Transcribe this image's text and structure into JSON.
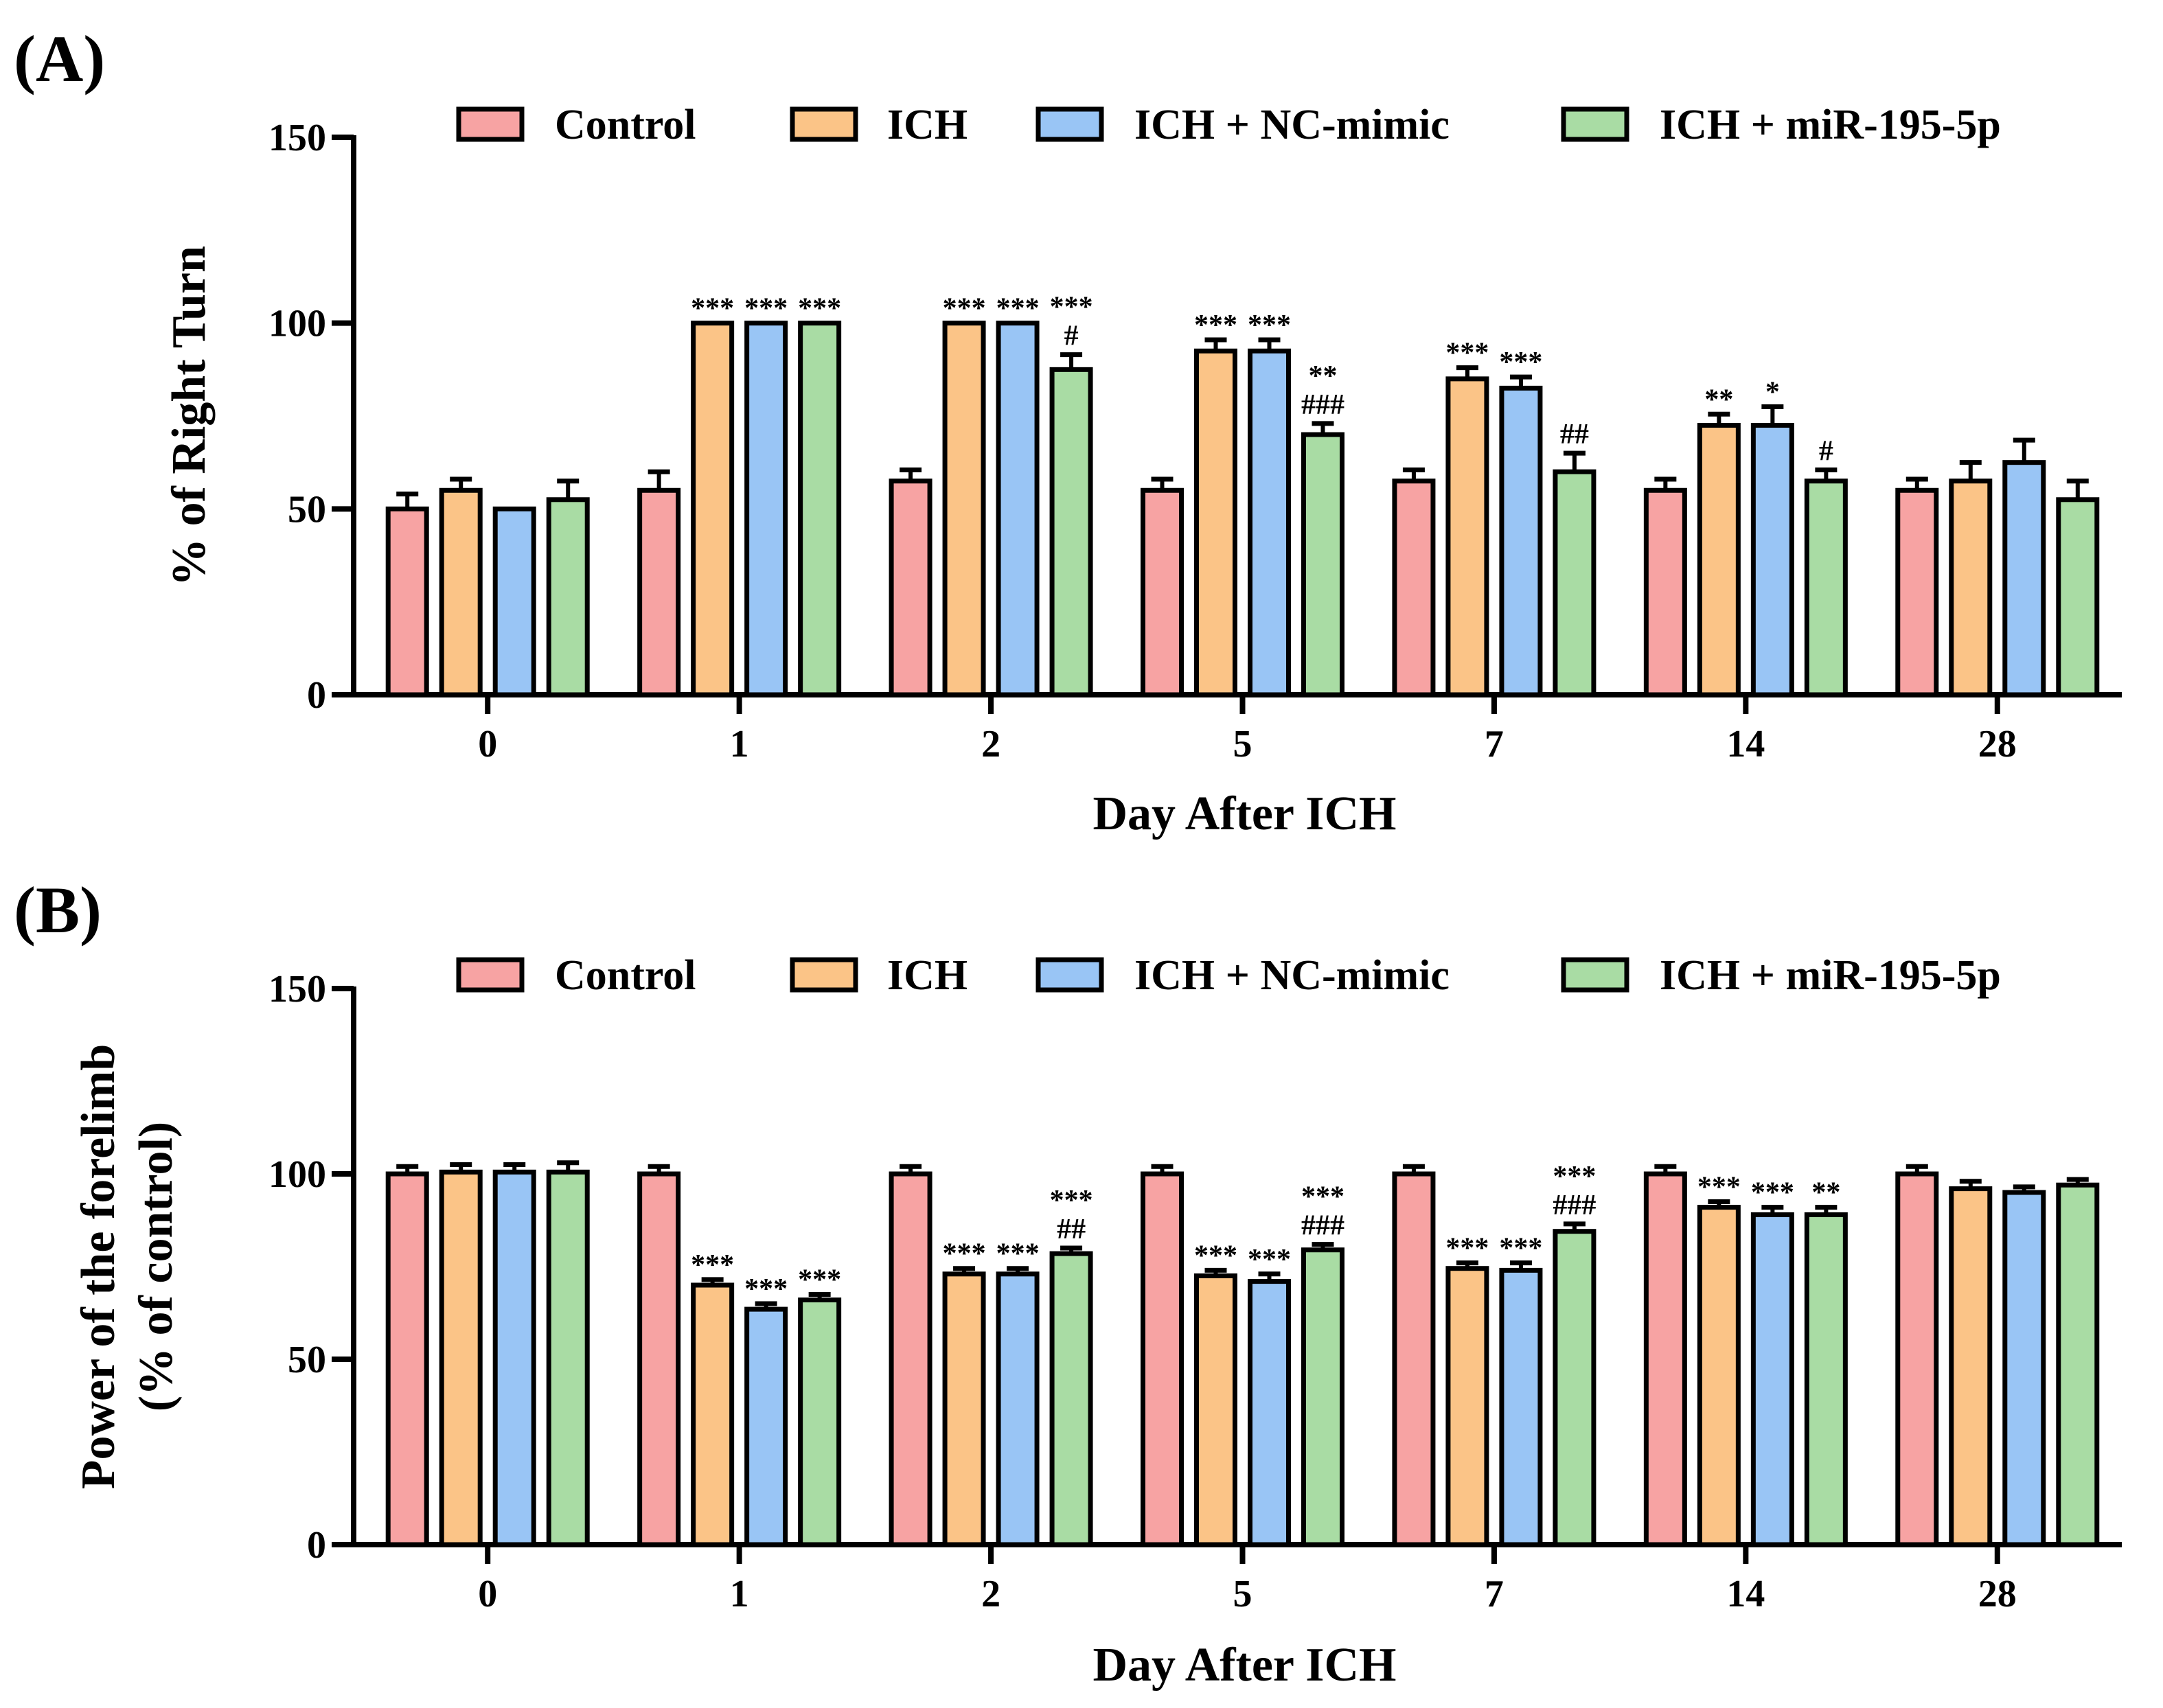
{
  "colors": {
    "Control": "#F7A3A3",
    "ICH": "#FBC487",
    "ICH + NC-mimic": "#99C5F5",
    "ICH + miR-195-5p": "#A9DCA4"
  },
  "chart_data": [
    {
      "type": "bar",
      "panel_label": "(A)",
      "xlabel": "Day After ICH",
      "ylabel": "% of Right Turn",
      "ylim": [
        0,
        150
      ],
      "yticks": [
        "0",
        "50",
        "100",
        "150"
      ],
      "legend_position": "top",
      "categories": [
        "0",
        "1",
        "2",
        "5",
        "7",
        "14",
        "28"
      ],
      "series": [
        {
          "name": "Control",
          "values": [
            50,
            55,
            57.5,
            55,
            57.5,
            55,
            55
          ],
          "errors": [
            4,
            5,
            3,
            3,
            3,
            3,
            3
          ],
          "annotations": [
            [],
            [],
            [],
            [],
            [],
            [],
            []
          ]
        },
        {
          "name": "ICH",
          "values": [
            55,
            100,
            100,
            92.5,
            85,
            72.5,
            57.5
          ],
          "errors": [
            3,
            0,
            0,
            3,
            3,
            3,
            5
          ],
          "annotations": [
            [],
            [
              "***"
            ],
            [
              "***"
            ],
            [
              "***"
            ],
            [
              "***"
            ],
            [
              "**"
            ],
            []
          ]
        },
        {
          "name": "ICH + NC-mimic",
          "values": [
            50,
            100,
            100,
            92.5,
            82.5,
            72.5,
            62.5
          ],
          "errors": [
            0,
            0,
            0,
            3,
            3,
            5,
            6
          ],
          "annotations": [
            [],
            [
              "***"
            ],
            [
              "***"
            ],
            [
              "***"
            ],
            [
              "***"
            ],
            [
              "*"
            ],
            []
          ]
        },
        {
          "name": "ICH + miR-195-5p",
          "values": [
            52.5,
            100,
            87.5,
            70,
            60,
            57.5,
            52.5
          ],
          "errors": [
            5,
            0,
            4,
            3,
            5,
            3,
            5
          ],
          "annotations": [
            [],
            [
              "***"
            ],
            [
              "***",
              "#"
            ],
            [
              "**",
              "###"
            ],
            [
              "##"
            ],
            [
              "#"
            ],
            []
          ]
        }
      ]
    },
    {
      "type": "bar",
      "panel_label": "(B)",
      "xlabel": "Day After ICH",
      "ylabel": [
        "Power of the forelimb",
        "(% of control)"
      ],
      "ylim": [
        0,
        150
      ],
      "yticks": [
        "0",
        "50",
        "100",
        "150"
      ],
      "legend_position": "top",
      "categories": [
        "0",
        "1",
        "2",
        "5",
        "7",
        "14",
        "28"
      ],
      "series": [
        {
          "name": "Control",
          "values": [
            100,
            100,
            100,
            100,
            100,
            100,
            100
          ],
          "errors": [
            2,
            2,
            2,
            2,
            2,
            2,
            2
          ],
          "annotations": [
            [],
            [],
            [],
            [],
            [],
            [],
            []
          ]
        },
        {
          "name": "ICH",
          "values": [
            100.5,
            70,
            73,
            72.5,
            74.5,
            91,
            96
          ],
          "errors": [
            2,
            1.5,
            1.5,
            1.5,
            1.5,
            1.5,
            2
          ],
          "annotations": [
            [],
            [
              "***"
            ],
            [
              "***"
            ],
            [
              "***"
            ],
            [
              "***"
            ],
            [
              "***"
            ],
            []
          ]
        },
        {
          "name": "ICH + NC-mimic",
          "values": [
            100.5,
            63.5,
            73,
            71,
            74,
            89,
            95
          ],
          "errors": [
            2,
            1.5,
            1.5,
            2,
            2,
            2,
            1.5
          ],
          "annotations": [
            [],
            [
              "***"
            ],
            [
              "***"
            ],
            [
              "***"
            ],
            [
              "***"
            ],
            [
              "***"
            ],
            []
          ]
        },
        {
          "name": "ICH + miR-195-5p",
          "values": [
            100.5,
            66,
            78.5,
            79.5,
            84.5,
            89,
            97
          ],
          "errors": [
            2.5,
            1.5,
            1.5,
            1.5,
            2,
            2,
            1.5
          ],
          "annotations": [
            [],
            [
              "***"
            ],
            [
              "***",
              "##"
            ],
            [
              "***",
              "###"
            ],
            [
              "***",
              "###"
            ],
            [
              "**"
            ],
            []
          ]
        }
      ]
    }
  ]
}
